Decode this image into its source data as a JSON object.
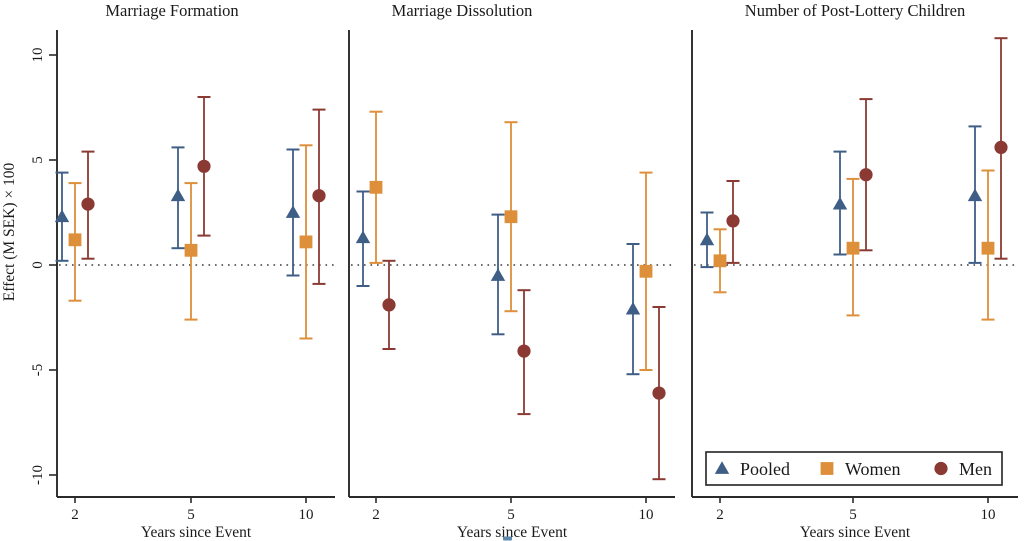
{
  "figure": {
    "background": "#ffffff",
    "text_color": "#1a1a1a"
  },
  "y_axis": {
    "label": "Effect (M SEK) × 100",
    "ticks": [
      10,
      5,
      0,
      -5,
      -10
    ],
    "range": [
      -11.2,
      11.2
    ],
    "zero_reference_line": "dotted",
    "tick_labels_rotated": true
  },
  "x_axis": {
    "label": "Years since Event",
    "ticks": [
      2,
      5,
      10
    ]
  },
  "legend": {
    "position": "inside-bottom-right-of-third-panel",
    "items": [
      {
        "label": "Pooled",
        "marker": "triangle",
        "color": "#3f5e86"
      },
      {
        "label": "Women",
        "marker": "square",
        "color": "#dd8f3a"
      },
      {
        "label": "Men",
        "marker": "circle",
        "color": "#8a3a33"
      }
    ]
  },
  "colors": {
    "pooled": "#3f5e86",
    "women": "#dd8f3a",
    "men": "#8a3a33",
    "axis": "#2a2a2a",
    "zero_line": "#3a3a3a",
    "artifact_blue": "#5e88ab"
  },
  "chart_data": {
    "type": "scatter",
    "subtype": "point-estimates-with-95pct-confidence-intervals",
    "x": [
      2,
      5,
      10
    ],
    "xlabel": "Years since Event",
    "ylabel": "Effect (M SEK) × 100",
    "ylim": [
      -11.2,
      11.2
    ],
    "grid": false,
    "panels": [
      {
        "title": "Marriage Formation",
        "series": [
          {
            "name": "Pooled",
            "marker": "triangle",
            "points": [
              {
                "x": 2,
                "est": 2.3,
                "lo": 0.2,
                "hi": 4.4
              },
              {
                "x": 5,
                "est": 3.3,
                "lo": 0.8,
                "hi": 5.6
              },
              {
                "x": 10,
                "est": 2.5,
                "lo": -0.5,
                "hi": 5.5
              }
            ]
          },
          {
            "name": "Women",
            "marker": "square",
            "points": [
              {
                "x": 2,
                "est": 1.2,
                "lo": -1.7,
                "hi": 3.9
              },
              {
                "x": 5,
                "est": 0.7,
                "lo": -2.6,
                "hi": 3.9
              },
              {
                "x": 10,
                "est": 1.1,
                "lo": -3.5,
                "hi": 5.7
              }
            ]
          },
          {
            "name": "Men",
            "marker": "circle",
            "points": [
              {
                "x": 2,
                "est": 2.9,
                "lo": 0.3,
                "hi": 5.4
              },
              {
                "x": 5,
                "est": 4.7,
                "lo": 1.4,
                "hi": 8.0
              },
              {
                "x": 10,
                "est": 3.3,
                "lo": -0.9,
                "hi": 7.4
              }
            ]
          }
        ]
      },
      {
        "title": "Marriage Dissolution",
        "series": [
          {
            "name": "Pooled",
            "marker": "triangle",
            "points": [
              {
                "x": 2,
                "est": 1.3,
                "lo": -1.0,
                "hi": 3.5
              },
              {
                "x": 5,
                "est": -0.5,
                "lo": -3.3,
                "hi": 2.4
              },
              {
                "x": 10,
                "est": -2.1,
                "lo": -5.2,
                "hi": 1.0
              }
            ]
          },
          {
            "name": "Women",
            "marker": "square",
            "points": [
              {
                "x": 2,
                "est": 3.7,
                "lo": 0.1,
                "hi": 7.3
              },
              {
                "x": 5,
                "est": 2.3,
                "lo": -2.2,
                "hi": 6.8
              },
              {
                "x": 10,
                "est": -0.3,
                "lo": -5.0,
                "hi": 4.4
              }
            ]
          },
          {
            "name": "Men",
            "marker": "circle",
            "points": [
              {
                "x": 2,
                "est": -1.9,
                "lo": -4.0,
                "hi": 0.2
              },
              {
                "x": 5,
                "est": -4.1,
                "lo": -7.1,
                "hi": -1.2
              },
              {
                "x": 10,
                "est": -6.1,
                "lo": -10.2,
                "hi": -2.0
              }
            ]
          }
        ]
      },
      {
        "title": "Number of Post-Lottery Children",
        "series": [
          {
            "name": "Pooled",
            "marker": "triangle",
            "points": [
              {
                "x": 2,
                "est": 1.2,
                "lo": -0.1,
                "hi": 2.5
              },
              {
                "x": 5,
                "est": 2.9,
                "lo": 0.5,
                "hi": 5.4
              },
              {
                "x": 10,
                "est": 3.3,
                "lo": 0.1,
                "hi": 6.6
              }
            ]
          },
          {
            "name": "Women",
            "marker": "square",
            "points": [
              {
                "x": 2,
                "est": 0.2,
                "lo": -1.3,
                "hi": 1.7
              },
              {
                "x": 5,
                "est": 0.8,
                "lo": -2.4,
                "hi": 4.1
              },
              {
                "x": 10,
                "est": 0.8,
                "lo": -2.6,
                "hi": 4.5
              }
            ]
          },
          {
            "name": "Men",
            "marker": "circle",
            "points": [
              {
                "x": 2,
                "est": 2.1,
                "lo": 0.1,
                "hi": 4.0
              },
              {
                "x": 5,
                "est": 4.3,
                "lo": 0.7,
                "hi": 7.9
              },
              {
                "x": 10,
                "est": 5.6,
                "lo": 0.3,
                "hi": 10.8
              }
            ]
          }
        ]
      }
    ]
  }
}
